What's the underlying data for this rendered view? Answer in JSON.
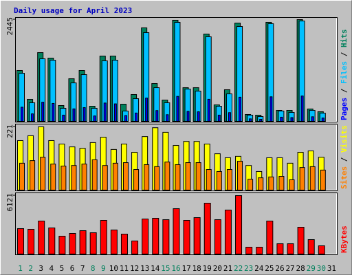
{
  "chart_data": {
    "type": "bar",
    "title": "Daily usage for April 2023",
    "categories": [
      "1",
      "2",
      "3",
      "4",
      "5",
      "6",
      "7",
      "8",
      "9",
      "10",
      "11",
      "12",
      "13",
      "14",
      "15",
      "16",
      "17",
      "18",
      "19",
      "20",
      "21",
      "22",
      "23",
      "24",
      "25",
      "26",
      "27",
      "28",
      "29",
      "30",
      "31"
    ],
    "category_colors": [
      "#00805c",
      "#00805c",
      "#000000",
      "#000000",
      "#000000",
      "#000000",
      "#000000",
      "#00805c",
      "#00805c",
      "#000000",
      "#000000",
      "#000000",
      "#000000",
      "#000000",
      "#00805c",
      "#00805c",
      "#000000",
      "#000000",
      "#000000",
      "#000000",
      "#000000",
      "#00805c",
      "#00805c",
      "#000000",
      "#000000",
      "#000000",
      "#000000",
      "#000000",
      "#00805c",
      "#00805c",
      "#000000"
    ],
    "separator": " / ",
    "panels": [
      {
        "ylim": [
          0,
          2445
        ],
        "yticks": [
          2445
        ],
        "series": [
          {
            "name": "Pages",
            "color": "#0000ff",
            "values": [
              340,
              180,
              460,
              430,
              150,
              300,
              330,
              130,
              440,
              420,
              140,
              200,
              560,
              260,
              160,
              600,
              240,
              230,
              530,
              150,
              210,
              580,
              60,
              50,
              590,
              100,
              90,
              610,
              110,
              80,
              null
            ]
          },
          {
            "name": "Files",
            "color": "#00c0ff",
            "values": [
              1156,
              446,
              1503,
              1470,
              314,
              924,
              1123,
              314,
              1454,
              1470,
              248,
              545,
              2131,
              809,
              446,
              2379,
              776,
              727,
              2032,
              363,
              660,
              2280,
              149,
              116,
              2346,
              248,
              215,
              2412,
              264,
              198,
              null
            ]
          },
          {
            "name": "Hits",
            "color": "#00805c",
            "values": [
              1222,
              528,
              1652,
              1520,
              380,
              1024,
              1222,
              363,
              1569,
              1569,
              413,
              644,
              2247,
              908,
              512,
              2429,
              809,
              809,
              2098,
              396,
              760,
              2362,
              165,
              149,
              2379,
              264,
              264,
              2445,
              297,
              231,
              null
            ]
          }
        ]
      },
      {
        "ylim": [
          0,
          221
        ],
        "yticks": [
          221
        ],
        "series": [
          {
            "name": "Sites",
            "color": "#ff8000",
            "values": [
              94,
              103,
              115,
              91,
              84,
              86,
              91,
              106,
              86,
              94,
              96,
              72,
              89,
              82,
              98,
              89,
              96,
              96,
              72,
              65,
              72,
              101,
              38,
              43,
              46,
              48,
              36,
              79,
              82,
              70,
              null
            ]
          },
          {
            "name": "Visits",
            "color": "#ffff00",
            "values": [
              173,
              190,
              221,
              173,
              161,
              151,
              146,
              166,
              185,
              142,
              161,
              132,
              187,
              218,
              202,
              156,
              170,
              170,
              161,
              127,
              113,
              118,
              86,
              65,
              113,
              113,
              94,
              132,
              137,
              115,
              null
            ]
          }
        ]
      },
      {
        "ylim": [
          0,
          6121
        ],
        "yticks": [
          6121
        ],
        "series": [
          {
            "name": "KBytes",
            "color": "#ff0000",
            "values": [
              2664,
              2592,
              3456,
              2736,
              1872,
              2160,
              2448,
              2232,
              3528,
              2520,
              2088,
              1368,
              3672,
              3744,
              3600,
              4752,
              3528,
              3816,
              5328,
              3600,
              4608,
              6121,
              720,
              720,
              3456,
              1080,
              1080,
              2808,
              1512,
              864,
              null
            ]
          }
        ]
      }
    ]
  }
}
